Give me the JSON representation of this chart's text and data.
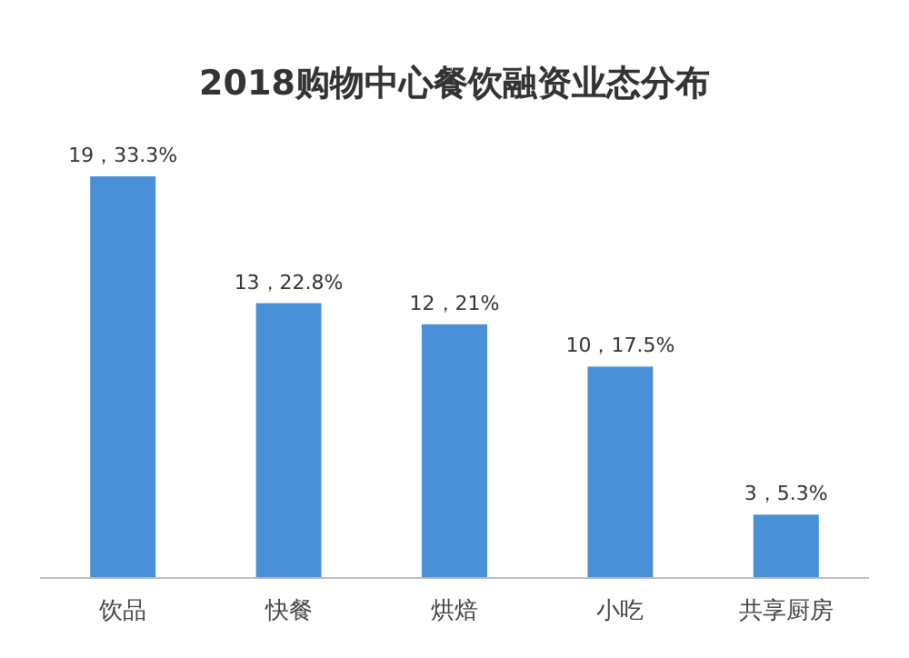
{
  "chart_data": {
    "type": "bar",
    "title": "2018购物中心餐饮融资业态分布",
    "categories": [
      "饮品",
      "快餐",
      "烘焙",
      "小吃",
      "共享厨房"
    ],
    "values": [
      19,
      13,
      12,
      10,
      3
    ],
    "value_labels": [
      "19，33.3%",
      "13，22.8%",
      "12，21%",
      "10，17.5%",
      "3，5.3%"
    ],
    "color": "#4a90d9"
  }
}
